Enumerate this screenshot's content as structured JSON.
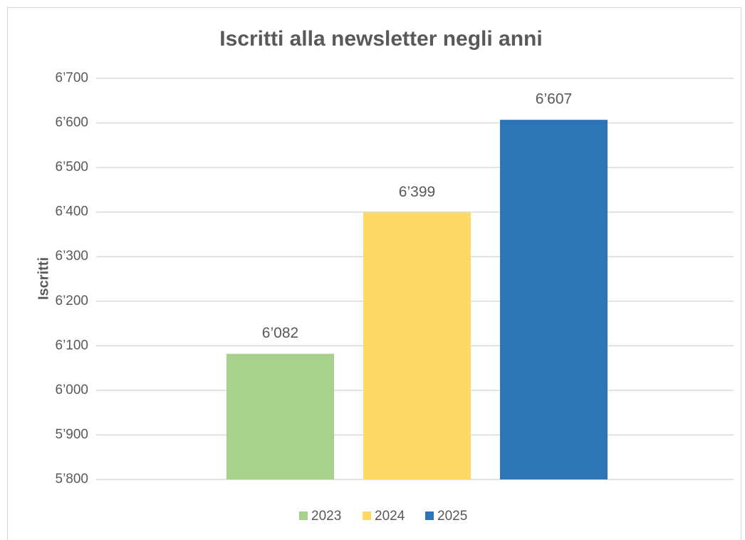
{
  "chart_data": {
    "type": "bar",
    "title": "Iscritti alla newsletter negli anni",
    "y_label": "Iscritti",
    "categories": [
      null
    ],
    "series": [
      {
        "name": "2023",
        "color": "#a9d18e",
        "values": [
          6082
        ],
        "value_labels": [
          "6’082"
        ]
      },
      {
        "name": "2024",
        "color": "#ffd966",
        "values": [
          6399
        ],
        "value_labels": [
          "6’399"
        ]
      },
      {
        "name": "2025",
        "color": "#2e75b6",
        "values": [
          6607
        ],
        "value_labels": [
          "6’607"
        ]
      }
    ],
    "ylim": [
      5800,
      6700
    ],
    "yticks": [
      {
        "value": 5800,
        "label": "5’800"
      },
      {
        "value": 5900,
        "label": "5’900"
      },
      {
        "value": 6000,
        "label": "6’000"
      },
      {
        "value": 6100,
        "label": "6’100"
      },
      {
        "value": 6200,
        "label": "6’200"
      },
      {
        "value": 6300,
        "label": "6’300"
      },
      {
        "value": 6400,
        "label": "6’400"
      },
      {
        "value": 6500,
        "label": "6’500"
      },
      {
        "value": 6600,
        "label": "6’600"
      },
      {
        "value": 6700,
        "label": "6’700"
      }
    ],
    "grid": true,
    "legend": "bottom"
  }
}
